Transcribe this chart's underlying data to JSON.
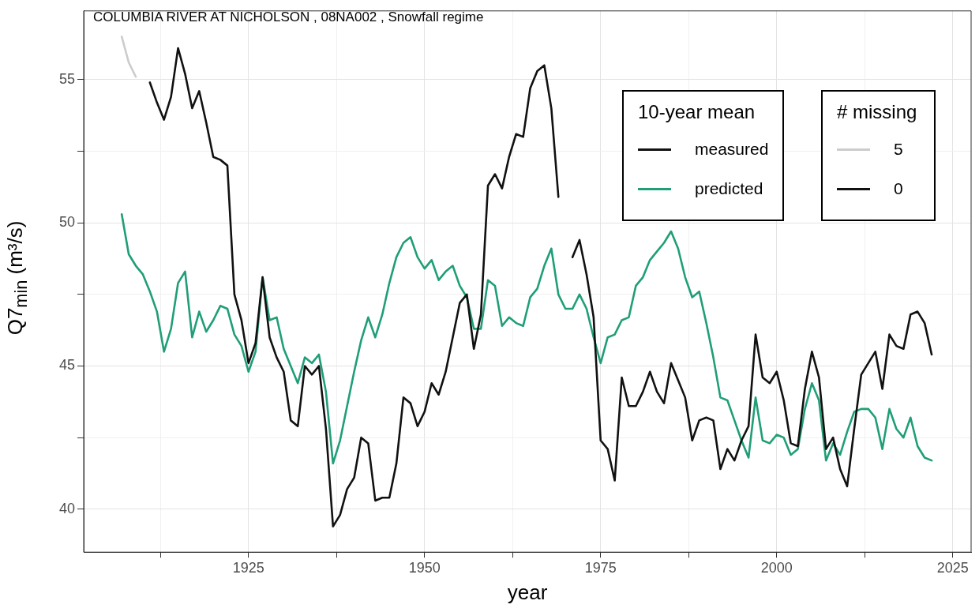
{
  "chart_data": {
    "type": "line",
    "title": "COLUMBIA RIVER AT NICHOLSON ,  08NA002 ,  Snowfall  regime",
    "xlabel": "year",
    "ylabel": "Q7$_{min}$ (m³/s)",
    "legend_title": "10-year mean",
    "legend": "top right",
    "grid": true,
    "marker": "none",
    "line_style": "solid",
    "annotations": [
      "# missing",
      "5",
      "0"
    ],
    "xlim": [
      1901.6,
      2027.6
    ],
    "xticks": [
      {
        "value": 1912.5,
        "label": null
      },
      1925,
      {
        "value": 1937.5,
        "label": null
      },
      1950,
      {
        "value": 1962.5,
        "label": null
      },
      1975,
      {
        "value": 1987.5,
        "label": null
      },
      2000,
      {
        "value": 2012.5,
        "label": null
      },
      2025
    ],
    "ylim": [
      38.5,
      57.4
    ],
    "yticks": [
      40,
      {
        "value": 42.5,
        "label": null
      },
      45,
      {
        "value": 47.5,
        "label": null
      },
      50,
      {
        "value": 52.5,
        "label": null
      },
      55
    ],
    "x": [
      1907,
      1908,
      1909,
      1910,
      1911,
      1912,
      1913,
      1914,
      1915,
      1916,
      1917,
      1918,
      1919,
      1920,
      1921,
      1922,
      1923,
      1924,
      1925,
      1926,
      1927,
      1928,
      1929,
      1930,
      1931,
      1932,
      1933,
      1934,
      1935,
      1936,
      1937,
      1938,
      1939,
      1940,
      1941,
      1942,
      1943,
      1944,
      1945,
      1946,
      1947,
      1948,
      1949,
      1950,
      1951,
      1952,
      1953,
      1954,
      1955,
      1956,
      1957,
      1958,
      1959,
      1960,
      1961,
      1962,
      1963,
      1964,
      1965,
      1966,
      1967,
      1968,
      1969,
      1970,
      1971,
      1972,
      1973,
      1974,
      1975,
      1976,
      1977,
      1978,
      1979,
      1980,
      1981,
      1982,
      1983,
      1984,
      1985,
      1986,
      1987,
      1988,
      1989,
      1990,
      1991,
      1992,
      1993,
      1994,
      1995,
      1996,
      1997,
      1998,
      1999,
      2000,
      2001,
      2002,
      2003,
      2004,
      2005,
      2006,
      2007,
      2008,
      2009,
      2010,
      2011,
      2012,
      2013,
      2014,
      2015,
      2016,
      2017,
      2018,
      2019,
      2020,
      2021,
      2022
    ],
    "series": [
      {
        "color": "#cccccc",
        "x": [
          1907,
          1908,
          1909
        ],
        "values": [
          56.5,
          55.6,
          55.1
        ]
      },
      {
        "name": "measured",
        "color": "#111111",
        "values": [
          null,
          null,
          null,
          null,
          54.9,
          54.2,
          53.6,
          54.4,
          56.1,
          55.2,
          54.0,
          54.6,
          53.5,
          52.3,
          52.2,
          52.0,
          47.5,
          46.6,
          45.1,
          45.8,
          48.1,
          46.0,
          45.3,
          44.8,
          43.1,
          42.9,
          45.0,
          44.7,
          45.0,
          42.8,
          39.4,
          39.8,
          40.7,
          41.1,
          42.5,
          42.3,
          40.3,
          40.4,
          40.4,
          41.6,
          43.9,
          43.7,
          42.9,
          43.4,
          44.4,
          44.0,
          44.8,
          46.0,
          47.2,
          47.5,
          45.6,
          46.8,
          51.3,
          51.7,
          51.2,
          52.3,
          53.1,
          53.0,
          54.7,
          55.3,
          55.5,
          54.0,
          50.9,
          null,
          48.8,
          49.4,
          48.2,
          46.7,
          42.4,
          42.1,
          41.0,
          44.6,
          43.6,
          43.6,
          44.1,
          44.8,
          44.1,
          43.7,
          45.1,
          44.5,
          43.9,
          42.4,
          43.1,
          43.2,
          43.1,
          41.4,
          42.1,
          41.7,
          42.4,
          42.9,
          46.1,
          44.6,
          44.4,
          44.8,
          43.8,
          42.3,
          42.2,
          44.2,
          45.5,
          44.6,
          42.1,
          42.5,
          41.4,
          40.8,
          42.8,
          44.7,
          45.1,
          45.5,
          44.2,
          46.1,
          45.7,
          45.6,
          46.8,
          46.9,
          46.5,
          45.4
        ]
      },
      {
        "name": "predicted",
        "color": "#1f9e78",
        "values": [
          50.3,
          48.9,
          48.5,
          48.2,
          47.6,
          46.9,
          45.5,
          46.3,
          47.9,
          48.3,
          46.0,
          46.9,
          46.2,
          46.6,
          47.1,
          47.0,
          46.1,
          45.7,
          44.8,
          45.5,
          48.1,
          46.6,
          46.7,
          45.6,
          45.0,
          44.4,
          45.3,
          45.1,
          45.4,
          44.1,
          41.6,
          42.4,
          43.6,
          44.8,
          45.9,
          46.7,
          46.0,
          46.8,
          47.9,
          48.8,
          49.3,
          49.5,
          48.8,
          48.4,
          48.7,
          48.0,
          48.3,
          48.5,
          47.8,
          47.4,
          46.3,
          46.3,
          48.0,
          47.8,
          46.4,
          46.7,
          46.5,
          46.4,
          47.4,
          47.7,
          48.5,
          49.1,
          47.5,
          47.0,
          47.0,
          47.5,
          47.0,
          46.0,
          45.1,
          46.0,
          46.1,
          46.6,
          46.7,
          47.8,
          48.1,
          48.7,
          49.0,
          49.3,
          49.7,
          49.1,
          48.1,
          47.4,
          47.6,
          46.5,
          45.3,
          43.9,
          43.8,
          43.1,
          42.4,
          41.8,
          43.9,
          42.4,
          42.3,
          42.6,
          42.5,
          41.9,
          42.1,
          43.5,
          44.4,
          43.8,
          41.7,
          42.3,
          41.9,
          42.7,
          43.4,
          43.5,
          43.5,
          43.2,
          42.1,
          43.5,
          42.8,
          42.5,
          43.2,
          42.2,
          41.8,
          41.7
        ]
      }
    ]
  }
}
